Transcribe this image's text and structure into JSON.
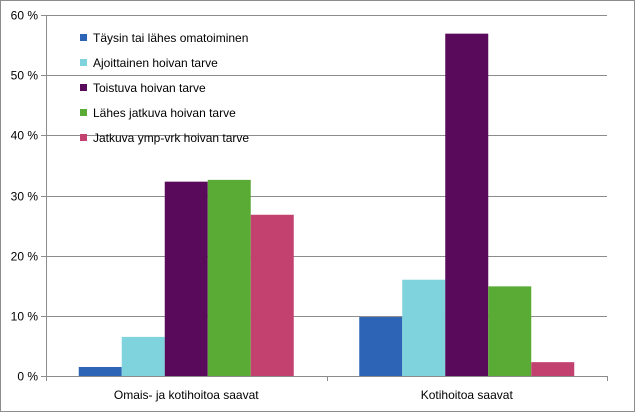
{
  "chart_data": {
    "type": "bar",
    "categories": [
      "Omais- ja kotihoitoa saavat",
      "Kotihoitoa saavat"
    ],
    "series": [
      {
        "name": "Täysin tai lähes omatoiminen",
        "values": [
          1.5,
          9.8
        ],
        "color": "#2e64b6"
      },
      {
        "name": "Ajoittainen hoivan tarve",
        "values": [
          6.5,
          16.0
        ],
        "color": "#7ed3dc"
      },
      {
        "name": "Toistuva hoivan tarve",
        "values": [
          32.3,
          56.9
        ],
        "color": "#5a0a5a"
      },
      {
        "name": "Lähes jatkuva hoivan tarve",
        "values": [
          32.6,
          14.9
        ],
        "color": "#5aab36"
      },
      {
        "name": "Jatkuva ymp-vrk hoivan tarve",
        "values": [
          26.8,
          2.3
        ],
        "color": "#c2416f"
      }
    ],
    "yticks": [
      "0 %",
      "10 %",
      "20 %",
      "30 %",
      "40 %",
      "50 %",
      "60 %"
    ],
    "ylim": [
      0,
      60
    ],
    "grid": true,
    "legend": "top-left"
  }
}
